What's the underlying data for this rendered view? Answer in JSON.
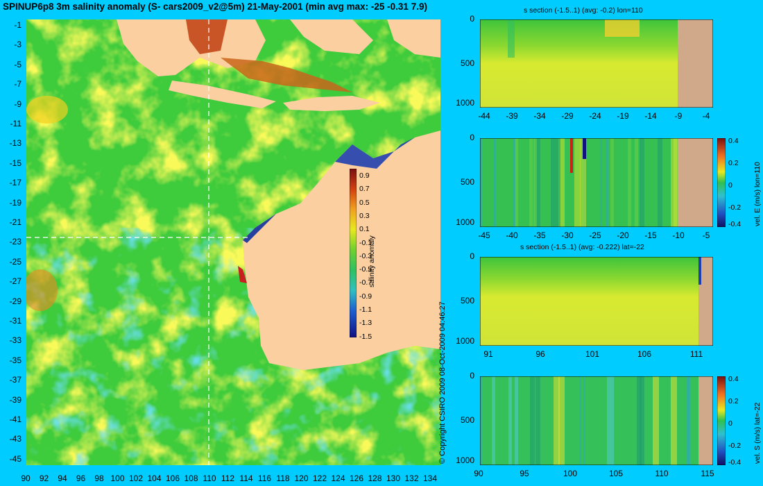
{
  "header": {
    "title": "SPINUP6p8 3m salinity anomaly (S- cars2009_v2@5m) 21-May-2001 (min avg max: -25 -0.31 7.9)"
  },
  "map": {
    "lon_ticks": [
      "90",
      "92",
      "94",
      "96",
      "98",
      "100",
      "102",
      "104",
      "106",
      "108",
      "110",
      "112",
      "114",
      "116",
      "118",
      "120",
      "122",
      "124",
      "126",
      "128",
      "130",
      "132",
      "134"
    ],
    "lat_ticks": [
      "-1",
      "-3",
      "-5",
      "-7",
      "-9",
      "-11",
      "-13",
      "-15",
      "-17",
      "-19",
      "-21",
      "-23",
      "-25",
      "-27",
      "-29",
      "-31",
      "-33",
      "-35",
      "-37",
      "-39",
      "-41",
      "-43",
      "-45"
    ],
    "colorbar": {
      "label": "salinity anomaly",
      "ticks": [
        "0.9",
        "0.7",
        "0.5",
        "0.3",
        "0.1",
        "-0.1",
        "-0.3",
        "-0.5",
        "-0.7",
        "-0.9",
        "-1.1",
        "-1.3",
        "-1.5"
      ]
    },
    "copyright": "© Copyright CSIRO 2009   08-Oct-2009 04:46:27",
    "section_lines": {
      "lon": "110",
      "lat": "-22"
    },
    "colors": {
      "land": "#fbcfa0",
      "ocean_base": "#3ecb3c",
      "section_line": "#ffffff"
    }
  },
  "panels": [
    {
      "title": "s section (-1.5..1) (avg: -0.2) lon=110",
      "y_ticks": [
        "0",
        "500",
        "1000"
      ],
      "x_ticks": [
        "-44",
        "-39",
        "-34",
        "-29",
        "-24",
        "-19",
        "-14",
        "-9",
        "-4"
      ],
      "colorbar": null
    },
    {
      "title": "",
      "y_ticks": [
        "0",
        "500",
        "1000"
      ],
      "x_ticks": [
        "-45",
        "-40",
        "-35",
        "-30",
        "-25",
        "-20",
        "-15",
        "-10",
        "-5"
      ],
      "colorbar": {
        "label": "vel. E (m/s) lon=110",
        "ticks": [
          "0.4",
          "0.2",
          "0",
          "-0.2",
          "-0.4"
        ]
      }
    },
    {
      "title": "s section (-1.5..1) (avg: -0.222) lat=-22",
      "y_ticks": [
        "0",
        "500",
        "1000"
      ],
      "x_ticks": [
        "91",
        "96",
        "101",
        "106",
        "111"
      ],
      "colorbar": null
    },
    {
      "title": "",
      "y_ticks": [
        "0",
        "500",
        "1000"
      ],
      "x_ticks": [
        "90",
        "95",
        "100",
        "105",
        "110",
        "115"
      ],
      "colorbar": {
        "label": "vel. S (m/s) lat=-22",
        "ticks": [
          "0.4",
          "0.2",
          "0",
          "-0.2",
          "-0.4"
        ]
      }
    }
  ]
}
